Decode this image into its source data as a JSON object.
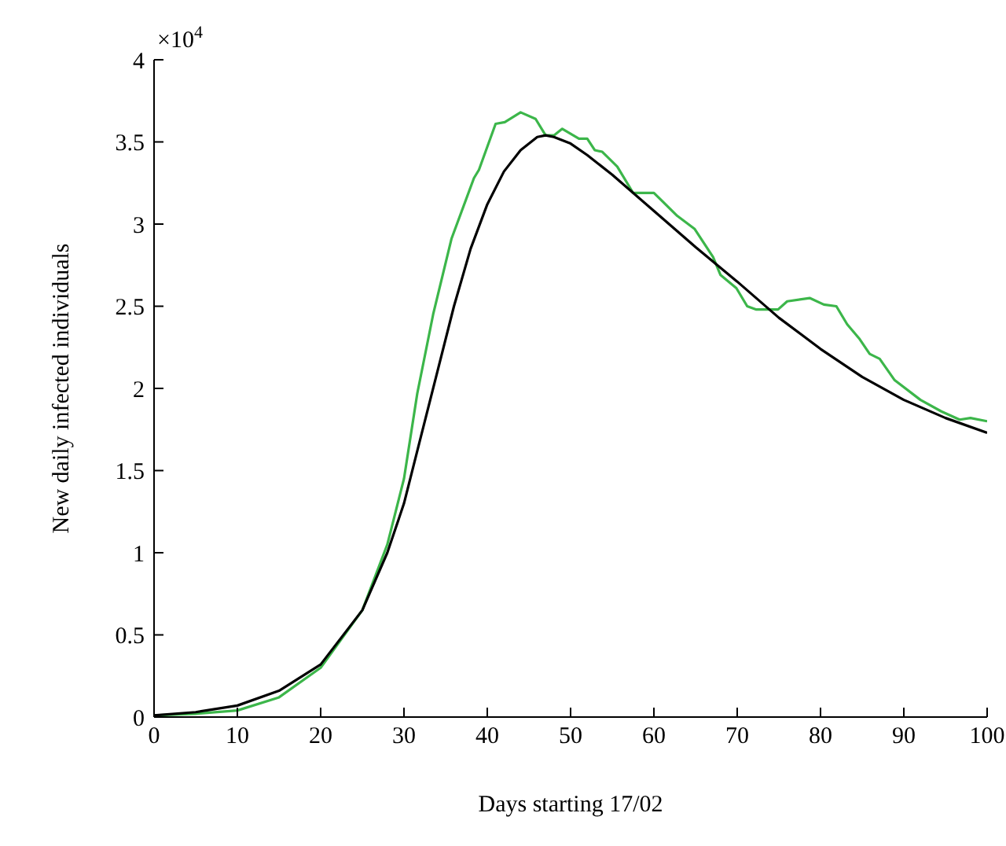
{
  "chart_data": {
    "type": "line",
    "xlabel": "Days starting 17/02",
    "ylabel": "New daily infected individuals",
    "annotations": [
      "×10$^{4}$"
    ],
    "xlim": [
      0,
      100
    ],
    "xticks": [
      0,
      10,
      20,
      30,
      40,
      50,
      60,
      70,
      80,
      90,
      100
    ],
    "ylim": [
      0,
      4
    ],
    "yticks": [
      0,
      0.5,
      1,
      1.5,
      2,
      2.5,
      3,
      3.5,
      4
    ],
    "grid": false,
    "legend": false,
    "marker": "none",
    "line_style": "solid",
    "series": [
      {
        "color": "#3cb64a",
        "x": [
          0,
          5,
          10,
          15,
          20,
          25,
          28,
          30,
          31.6,
          33.5,
          35.7,
          38.4,
          39,
          41,
          42.1,
          44,
          45.8,
          47,
          48,
          49,
          51,
          52,
          52.9,
          53.8,
          55.6,
          57.5,
          60,
          62.8,
          64.9,
          67.1,
          68,
          69.9,
          71.2,
          72.3,
          74.9,
          76,
          78.7,
          80.4,
          81.9,
          83.2,
          84.7,
          85.9,
          87.1,
          88.9,
          92,
          94.5,
          96.7,
          98,
          100
        ],
        "values": [
          0.01,
          0.02,
          0.04,
          0.12,
          0.3,
          0.65,
          1.05,
          1.45,
          1.97,
          2.45,
          2.91,
          3.28,
          3.33,
          3.61,
          3.62,
          3.68,
          3.64,
          3.54,
          3.54,
          3.58,
          3.52,
          3.52,
          3.45,
          3.44,
          3.35,
          3.19,
          3.19,
          3.05,
          2.97,
          2.8,
          2.69,
          2.61,
          2.5,
          2.48,
          2.48,
          2.53,
          2.55,
          2.51,
          2.5,
          2.39,
          2.3,
          2.21,
          2.18,
          2.05,
          1.93,
          1.86,
          1.81,
          1.82,
          1.8
        ]
      },
      {
        "color": "#000000",
        "x": [
          0,
          5,
          10,
          15,
          20,
          25,
          28,
          30,
          32,
          34,
          36,
          38,
          40,
          42,
          44,
          46,
          47,
          48,
          50,
          52,
          55,
          60,
          65,
          70,
          75,
          80,
          85,
          90,
          95,
          100
        ],
        "values": [
          0.01,
          0.03,
          0.07,
          0.16,
          0.32,
          0.65,
          1.0,
          1.3,
          1.7,
          2.1,
          2.5,
          2.85,
          3.12,
          3.32,
          3.45,
          3.53,
          3.54,
          3.53,
          3.49,
          3.42,
          3.3,
          3.08,
          2.86,
          2.65,
          2.43,
          2.24,
          2.07,
          1.93,
          1.82,
          1.73
        ]
      }
    ]
  }
}
